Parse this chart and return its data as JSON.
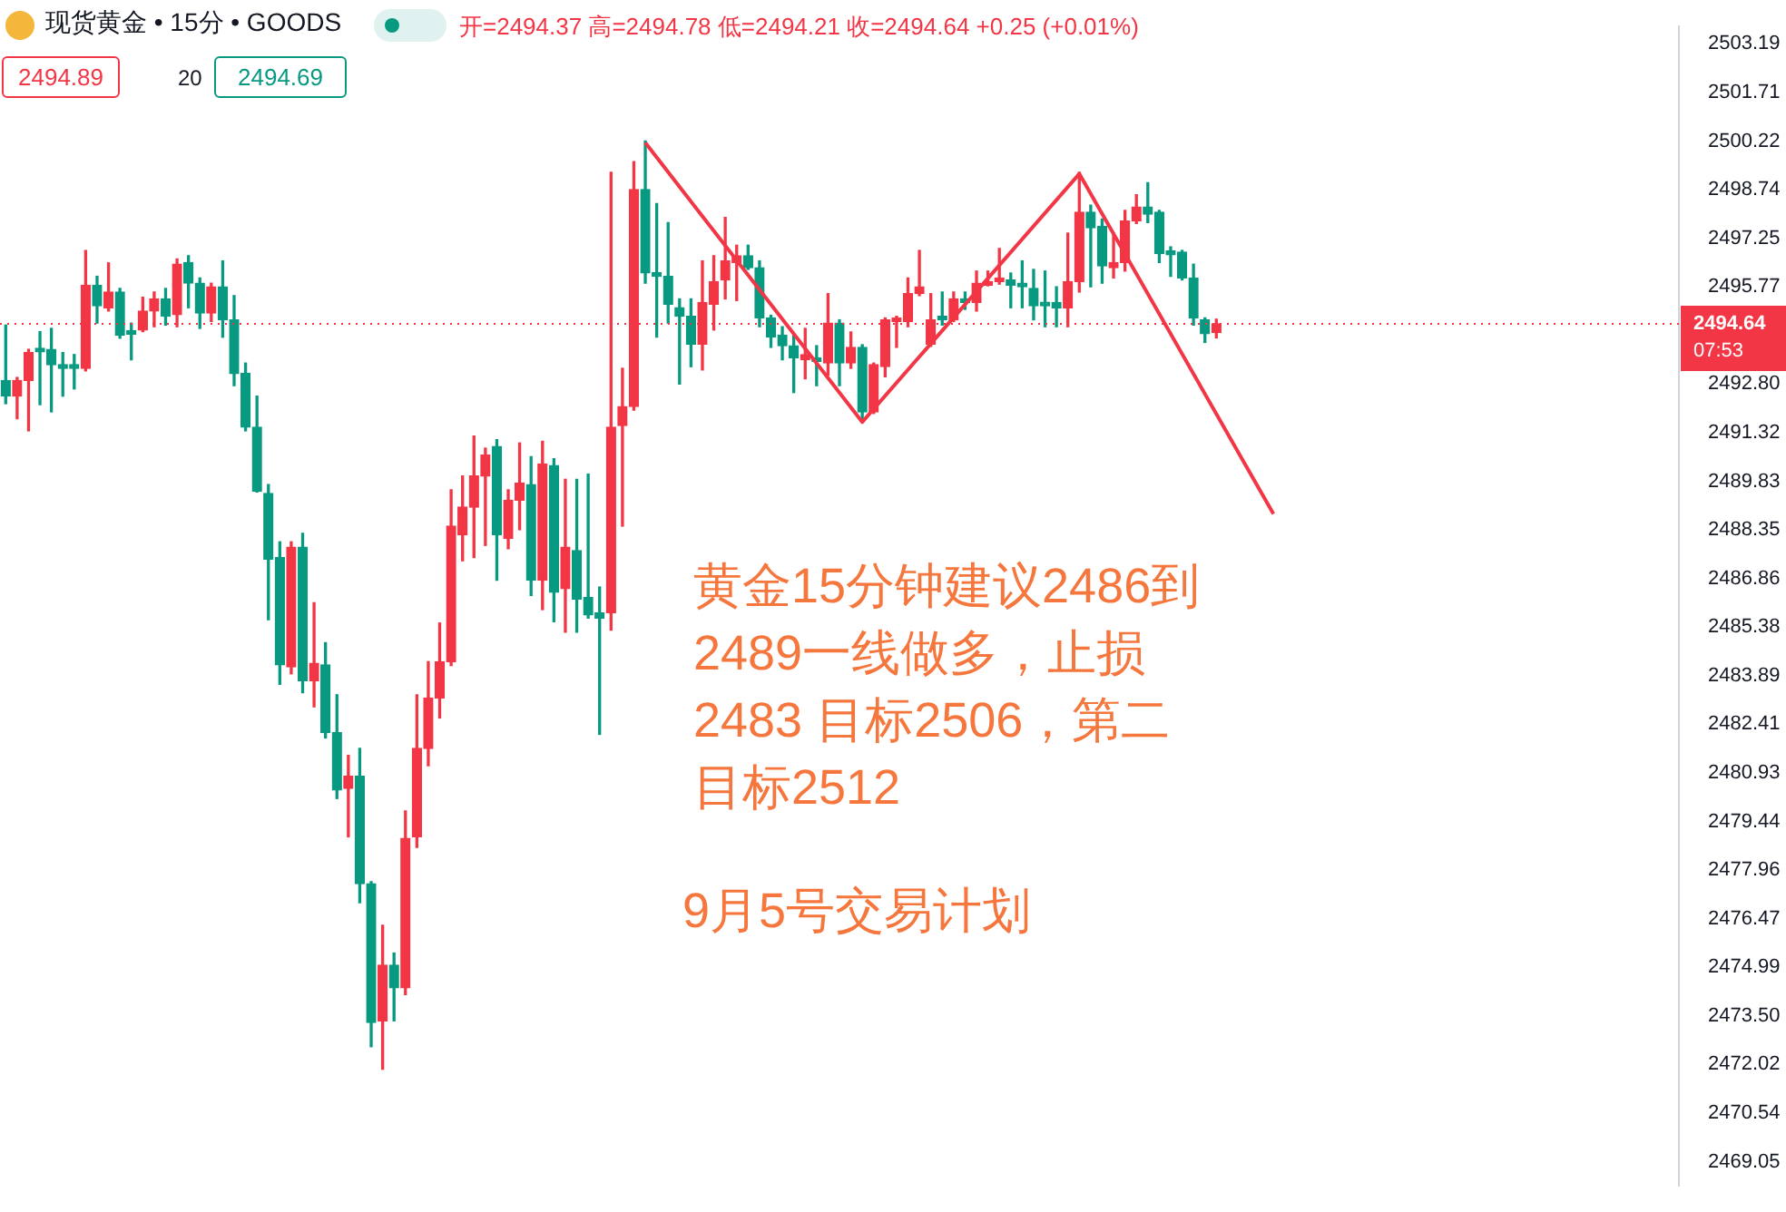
{
  "chart_data": {
    "type": "candlestick",
    "title": "现货黄金 • 15分 • GOODS",
    "categories": [
      null,
      null,
      null,
      null,
      null,
      null,
      null,
      null,
      null,
      null,
      null,
      null,
      null,
      null,
      null,
      null,
      null,
      null,
      null,
      null,
      null,
      null,
      null,
      null,
      null,
      null,
      null,
      null,
      null,
      null,
      null,
      null,
      null,
      null,
      null,
      null,
      null,
      null,
      null,
      null,
      null,
      null,
      null,
      null,
      null,
      null,
      null,
      null,
      null,
      null,
      null,
      null,
      null,
      null,
      null,
      null,
      null,
      null,
      null,
      null,
      null,
      null,
      null,
      null,
      null,
      null,
      null,
      null,
      null,
      null,
      null,
      null,
      null,
      null,
      null,
      null,
      null,
      null,
      null,
      null,
      null,
      null,
      null,
      null,
      null,
      null,
      null,
      null,
      null,
      null,
      null,
      null,
      null,
      null,
      null,
      null,
      null,
      null,
      null,
      null,
      null,
      null,
      null,
      null,
      null,
      null,
      null,
      null,
      null,
      null,
      null,
      null,
      null,
      null,
      null,
      null,
      null,
      null,
      null,
      null,
      null,
      null,
      null,
      null,
      null,
      null,
      null,
      null,
      null,
      null,
      null,
      null,
      null,
      null,
      null,
      null,
      null,
      null,
      null,
      null,
      null,
      null,
      null,
      null,
      null,
      null,
      null
    ],
    "ohlc": [
      [
        2492.91,
        2494.6,
        2492.2,
        2492.43
      ],
      [
        2492.43,
        2493.0,
        2491.74,
        2492.91
      ],
      [
        2492.91,
        2493.86,
        2491.37,
        2493.76
      ],
      [
        2493.8,
        2494.4,
        2492.17,
        2493.78
      ],
      [
        2493.86,
        2494.5,
        2491.95,
        2493.39
      ],
      [
        2493.3,
        2493.76,
        2492.43,
        2493.28
      ],
      [
        2493.39,
        2493.7,
        2492.65,
        2493.28
      ],
      [
        2493.28,
        2496.88,
        2493.2,
        2495.82
      ],
      [
        2495.82,
        2496.09,
        2494.66,
        2495.19
      ],
      [
        2495.13,
        2496.5,
        2495.03,
        2495.61
      ],
      [
        2495.61,
        2495.72,
        2494.2,
        2494.29
      ],
      [
        2494.34,
        2494.66,
        2493.54,
        2494.32
      ],
      [
        2494.45,
        2495.45,
        2494.4,
        2495.03
      ],
      [
        2495.03,
        2495.61,
        2494.55,
        2495.4
      ],
      [
        2495.4,
        2495.72,
        2494.6,
        2494.87
      ],
      [
        2494.92,
        2496.62,
        2494.55,
        2496.46
      ],
      [
        2496.51,
        2496.72,
        2495.13,
        2495.88
      ],
      [
        2495.88,
        2496.04,
        2494.5,
        2494.97
      ],
      [
        2494.97,
        2495.88,
        2494.71,
        2495.77
      ],
      [
        2495.77,
        2496.56,
        2494.23,
        2494.76
      ],
      [
        2494.76,
        2495.5,
        2492.75,
        2493.12
      ],
      [
        2493.12,
        2493.44,
        2491.37,
        2491.48
      ],
      [
        2491.48,
        2492.43,
        2489.5,
        2489.52
      ],
      [
        2489.46,
        2489.73,
        2485.6,
        2487.45
      ],
      [
        2487.5,
        2487.98,
        2483.63,
        2484.22
      ],
      [
        2484.16,
        2487.98,
        2483.95,
        2487.82
      ],
      [
        2487.82,
        2488.24,
        2483.37,
        2483.74
      ],
      [
        2483.74,
        2486.12,
        2482.94,
        2484.27
      ],
      [
        2484.22,
        2484.9,
        2481.99,
        2482.15
      ],
      [
        2482.15,
        2483.31,
        2480.14,
        2480.4
      ],
      [
        2480.45,
        2481.46,
        2478.97,
        2480.82
      ],
      [
        2480.82,
        2481.67,
        2476.96,
        2477.54
      ],
      [
        2477.54,
        2477.6,
        2472.56,
        2473.3
      ],
      [
        2473.35,
        2476.27,
        2471.87,
        2475.05
      ],
      [
        2475.05,
        2475.42,
        2473.35,
        2474.36
      ],
      [
        2474.36,
        2479.76,
        2474.15,
        2478.92
      ],
      [
        2478.97,
        2483.31,
        2478.65,
        2481.67
      ],
      [
        2481.67,
        2484.32,
        2481.14,
        2483.21
      ],
      [
        2483.21,
        2485.5,
        2482.6,
        2484.32
      ],
      [
        2484.32,
        2489.57,
        2484.2,
        2488.46
      ],
      [
        2488.19,
        2489.99,
        2487.4,
        2489.04
      ],
      [
        2489.04,
        2491.21,
        2487.5,
        2489.99
      ],
      [
        2489.99,
        2490.84,
        2487.87,
        2490.63
      ],
      [
        2490.89,
        2491.1,
        2486.81,
        2488.19
      ],
      [
        2488.08,
        2489.57,
        2487.77,
        2489.25
      ],
      [
        2489.25,
        2491.0,
        2488.35,
        2489.78
      ],
      [
        2489.73,
        2490.58,
        2486.34,
        2486.81
      ],
      [
        2486.81,
        2491.05,
        2485.91,
        2490.36
      ],
      [
        2490.31,
        2490.52,
        2485.54,
        2486.44
      ],
      [
        2486.55,
        2489.89,
        2485.22,
        2487.82
      ],
      [
        2487.71,
        2489.89,
        2485.22,
        2486.23
      ],
      [
        2486.28,
        2490.05,
        2485.65,
        2485.75
      ],
      [
        2485.81,
        2486.6,
        2482.1,
        2485.65
      ],
      [
        2485.81,
        2499.27,
        2485.28,
        2491.48
      ],
      [
        2491.53,
        2493.28,
        2488.46,
        2492.11
      ],
      [
        2492.11,
        2499.59,
        2492.0,
        2498.74
      ],
      [
        2498.74,
        2500.22,
        2495.88,
        2496.19
      ],
      [
        2496.14,
        2498.31,
        2494.23,
        2496.09
      ],
      [
        2496.09,
        2497.73,
        2494.66,
        2495.24
      ],
      [
        2495.13,
        2495.4,
        2492.8,
        2494.87
      ],
      [
        2494.87,
        2495.4,
        2493.33,
        2494.02
      ],
      [
        2494.02,
        2496.56,
        2493.23,
        2495.29
      ],
      [
        2495.24,
        2496.72,
        2494.45,
        2495.93
      ],
      [
        2495.98,
        2497.89,
        2495.4,
        2496.56
      ],
      [
        2496.51,
        2497.04,
        2495.35,
        2496.72
      ],
      [
        2496.72,
        2497.04,
        2496.3,
        2496.35
      ],
      [
        2496.35,
        2496.56,
        2494.55,
        2494.82
      ],
      [
        2494.82,
        2494.9,
        2493.92,
        2494.23
      ],
      [
        2494.29,
        2494.55,
        2493.54,
        2493.97
      ],
      [
        2493.97,
        2494.29,
        2492.54,
        2493.6
      ],
      [
        2493.54,
        2494.5,
        2492.96,
        2493.7
      ],
      [
        2493.6,
        2493.97,
        2492.75,
        2493.49
      ],
      [
        2493.44,
        2495.56,
        2493.07,
        2494.66
      ],
      [
        2494.66,
        2494.76,
        2492.75,
        2493.44
      ],
      [
        2493.44,
        2494.39,
        2493.28,
        2493.92
      ],
      [
        2493.92,
        2494.0,
        2491.69,
        2491.95
      ],
      [
        2491.95,
        2493.44,
        2491.9,
        2493.39
      ],
      [
        2493.33,
        2494.82,
        2493.02,
        2494.76
      ],
      [
        2494.71,
        2494.87,
        2493.92,
        2494.76
      ],
      [
        2494.71,
        2496.04,
        2494.55,
        2495.56
      ],
      [
        2495.56,
        2496.88,
        2495.5,
        2495.77
      ],
      [
        2494.02,
        2495.56,
        2493.95,
        2494.76
      ],
      [
        2494.87,
        2495.61,
        2494.6,
        2494.76
      ],
      [
        2494.76,
        2495.61,
        2494.71,
        2495.4
      ],
      [
        2495.4,
        2495.61,
        2495.08,
        2495.29
      ],
      [
        2495.29,
        2496.25,
        2495.03,
        2495.88
      ],
      [
        2495.82,
        2496.25,
        2495.8,
        2495.93
      ],
      [
        2495.93,
        2496.94,
        2495.85,
        2495.93
      ],
      [
        2495.98,
        2496.19,
        2495.13,
        2495.82
      ],
      [
        2495.82,
        2496.56,
        2495.13,
        2495.77
      ],
      [
        2495.72,
        2496.3,
        2494.76,
        2495.19
      ],
      [
        2495.2,
        2496.25,
        2494.55,
        2495.19
      ],
      [
        2495.29,
        2495.77,
        2494.55,
        2495.13
      ],
      [
        2495.13,
        2497.41,
        2494.55,
        2495.93
      ],
      [
        2495.93,
        2499.27,
        2495.61,
        2498.05
      ],
      [
        2498.05,
        2498.26,
        2495.77,
        2497.57
      ],
      [
        2497.62,
        2497.84,
        2495.88,
        2496.41
      ],
      [
        2496.35,
        2497.41,
        2496.04,
        2496.51
      ],
      [
        2496.51,
        2498.1,
        2496.25,
        2497.78
      ],
      [
        2497.78,
        2498.58,
        2497.7,
        2498.21
      ],
      [
        2498.21,
        2498.95,
        2497.73,
        2497.99
      ],
      [
        2498.05,
        2498.1,
        2496.51,
        2496.78
      ],
      [
        2496.8,
        2496.99,
        2496.09,
        2496.75
      ],
      [
        2496.83,
        2496.88,
        2495.98,
        2496.04
      ],
      [
        2496.04,
        2496.46,
        2494.6,
        2494.82
      ],
      [
        2494.76,
        2494.82,
        2494.07,
        2494.34
      ],
      [
        2494.37,
        2494.78,
        2494.21,
        2494.64
      ],
      null,
      null,
      null,
      null,
      null,
      null,
      null,
      null,
      null,
      null,
      null,
      null,
      null,
      null,
      null,
      null,
      null,
      null,
      null,
      null,
      null,
      null,
      null,
      null,
      null,
      null,
      null,
      null,
      null,
      null,
      null,
      null,
      null,
      null,
      null,
      null,
      null,
      null,
      null,
      null
    ],
    "colors": [
      "#089981",
      "#f23645",
      "#f23645",
      "#089981",
      "#089981",
      "#089981",
      "#089981",
      "#f23645",
      "#089981",
      "#f23645",
      "#089981",
      "#089981",
      "#f23645",
      "#f23645",
      "#089981",
      "#f23645",
      "#089981",
      "#089981",
      "#f23645",
      "#089981",
      "#089981",
      "#089981",
      "#089981",
      "#089981",
      "#089981",
      "#f23645",
      "#089981",
      "#f23645",
      "#089981",
      "#089981",
      "#f23645",
      "#089981",
      "#089981",
      "#f23645",
      "#089981",
      "#f23645",
      "#f23645",
      "#f23645",
      "#f23645",
      "#f23645",
      "#f23645",
      "#f23645",
      "#f23645",
      "#089981",
      "#f23645",
      "#f23645",
      "#089981",
      "#f23645",
      "#089981",
      "#f23645",
      "#089981",
      "#089981",
      "#089981",
      "#f23645",
      "#f23645",
      "#f23645",
      "#089981",
      "#089981",
      "#089981",
      "#089981",
      "#089981",
      "#f23645",
      "#f23645",
      "#f23645",
      "#f23645",
      "#089981",
      "#089981",
      "#089981",
      "#089981",
      "#089981",
      "#f23645",
      "#089981",
      "#f23645",
      "#089981",
      "#f23645",
      "#089981",
      "#f23645",
      "#f23645",
      "#f23645",
      "#f23645",
      "#f23645",
      "#f23645",
      "#089981",
      "#f23645",
      "#089981",
      "#f23645",
      "#f23645",
      "#f23645",
      "#089981",
      "#089981",
      "#089981",
      "#089981",
      "#089981",
      "#f23645",
      "#f23645",
      "#089981",
      "#089981",
      "#f23645",
      "#f23645",
      "#f23645",
      "#089981",
      "#089981",
      "#089981",
      "#089981",
      "#089981",
      "#089981",
      "#f23645",
      null,
      null,
      null,
      null,
      null,
      null,
      null,
      null,
      null,
      null,
      null,
      null,
      null,
      null,
      null,
      null,
      null,
      null,
      null,
      null,
      null,
      null,
      null,
      null,
      null,
      null,
      null,
      null,
      null,
      null,
      null,
      null,
      null,
      null,
      null,
      null,
      null,
      null,
      null,
      null
    ],
    "series": [
      {
        "type": "line",
        "color": "#f23645",
        "values": [
          null,
          null,
          null,
          null,
          null,
          null,
          null,
          null,
          null,
          null,
          null,
          null,
          null,
          null,
          null,
          null,
          null,
          null,
          null,
          null,
          null,
          null,
          null,
          null,
          null,
          null,
          null,
          null,
          null,
          null,
          null,
          null,
          null,
          null,
          null,
          null,
          null,
          null,
          null,
          null,
          null,
          null,
          null,
          null,
          null,
          null,
          null,
          null,
          null,
          null,
          null,
          null,
          null,
          null,
          null,
          null,
          2500.17,
          null,
          null,
          null,
          null,
          null,
          null,
          null,
          null,
          null,
          null,
          null,
          null,
          null,
          null,
          null,
          null,
          null,
          null,
          2491.64,
          null,
          null,
          null,
          null,
          null,
          null,
          null,
          null,
          null,
          null,
          null,
          null,
          null,
          null,
          null,
          null,
          null,
          null,
          2499.22,
          null,
          null,
          null,
          null,
          null,
          null,
          null,
          null,
          null,
          null,
          null,
          null,
          null,
          null,
          null,
          null,
          2488.83,
          null,
          null,
          null,
          null,
          null,
          null,
          null,
          null,
          null,
          null,
          null,
          null,
          null,
          null,
          null,
          null,
          null,
          null,
          null,
          null,
          null,
          null,
          null,
          null,
          null,
          null,
          null,
          null,
          null,
          null,
          null,
          null,
          null,
          null,
          null
        ]
      }
    ],
    "ylim": [
      2468.32,
      2503.72
    ],
    "yticks": [
      2503.19,
      2501.71,
      2500.22,
      2498.74,
      2497.25,
      2495.77,
      {
        "value": 2492.8,
        "label": "2492.80"
      },
      2491.32,
      2489.83,
      2488.35,
      2486.86,
      2485.38,
      2483.89,
      2482.41,
      2480.93,
      2479.44,
      2477.96,
      2476.47,
      2474.99,
      {
        "value": 2473.5,
        "label": "2473.50"
      },
      2472.02,
      2470.54,
      2469.05
    ],
    "tick_labels": "y",
    "marker": "none",
    "ref_lines": [
      {
        "axis": "y",
        "value": 2494.64,
        "label": "2494.64",
        "color": "#f23645",
        "line_style": "dotted"
      }
    ],
    "annotations": [
      "开=2494.37 高=2494.78 低=2494.21 收=2494.64 +0.25 (+0.01%)",
      "2494.89",
      "20",
      "2494.69",
      "07:53",
      "黄金15分钟建议2486到2489一线做多，止损2483  目标2506，第二目标2512",
      "9月5号交易计划"
    ]
  }
}
